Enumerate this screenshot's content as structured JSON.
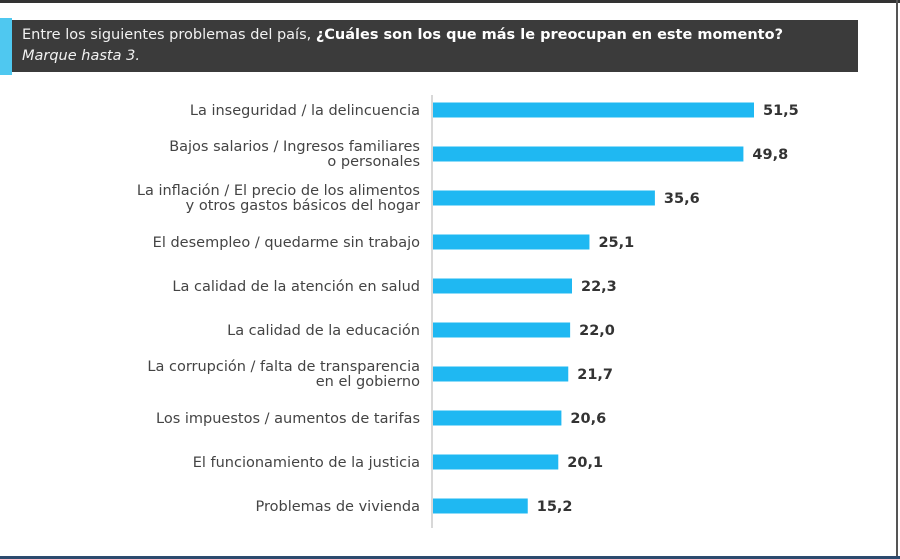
{
  "header": {
    "question_prefix": "Entre los siguientes problemas del país, ",
    "question_bold": "¿Cuáles son los que más le preocupan en este momento?",
    "instruction": "Marque hasta 3."
  },
  "chart_data": {
    "type": "bar",
    "orientation": "horizontal",
    "categories": [
      [
        "La inseguridad / la delincuencia"
      ],
      [
        "Bajos salarios / Ingresos familiares",
        "o personales"
      ],
      [
        "La inflación / El precio de los alimentos",
        "y otros gastos básicos del hogar"
      ],
      [
        "El desempleo / quedarme sin trabajo"
      ],
      [
        "La calidad de la atención en salud"
      ],
      [
        "La calidad de la educación"
      ],
      [
        "La corrupción / falta de transparencia",
        "en el gobierno"
      ],
      [
        "Los impuestos / aumentos de tarifas"
      ],
      [
        "El funcionamiento de la justicia"
      ],
      [
        "Problemas de vivienda"
      ]
    ],
    "values": [
      51.5,
      49.8,
      35.6,
      25.1,
      22.3,
      22.0,
      21.7,
      20.6,
      20.1,
      15.2
    ],
    "value_labels": [
      "51,5",
      "49,8",
      "35,6",
      "25,1",
      "22,3",
      "22,0",
      "21,7",
      "20,6",
      "20,1",
      "15,2"
    ],
    "bar_color": "#1fb8f2",
    "xlim": [
      0,
      51.5
    ],
    "grid": false,
    "legend": "none"
  }
}
